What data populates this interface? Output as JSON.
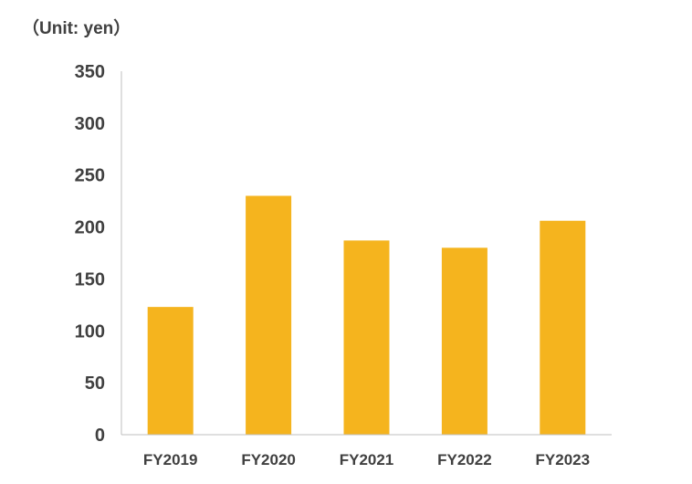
{
  "chart_data": {
    "type": "bar",
    "unit_label": "（Unit: yen）",
    "categories": [
      "FY2019",
      "FY2020",
      "FY2021",
      "FY2022",
      "FY2023"
    ],
    "values": [
      123,
      230,
      187,
      180,
      206
    ],
    "ylim": [
      0,
      350
    ],
    "yticks": [
      0,
      50,
      100,
      150,
      200,
      250,
      300,
      350
    ],
    "bar_color": "#F5B41E",
    "axis_color": "#BFBFBF",
    "text_color": "#404040",
    "grid": false,
    "legend": "none"
  }
}
